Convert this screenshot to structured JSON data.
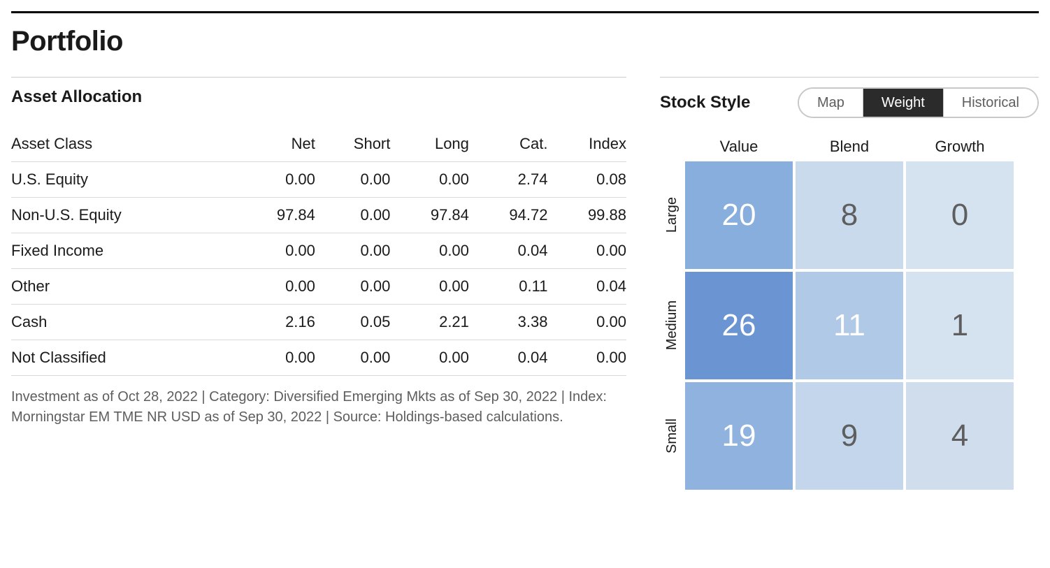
{
  "page": {
    "title": "Portfolio"
  },
  "colors": {
    "text": "#1a1a1a",
    "muted": "#5e5e5e",
    "rule": "#000000",
    "row_border": "#d9d9d9",
    "seg_border": "#c8c8c8",
    "seg_active_bg": "#2b2b2b",
    "seg_active_fg": "#ffffff",
    "bg": "#ffffff"
  },
  "asset_allocation": {
    "title": "Asset Allocation",
    "columns": [
      "Asset Class",
      "Net",
      "Short",
      "Long",
      "Cat.",
      "Index"
    ],
    "rows": [
      [
        "U.S. Equity",
        "0.00",
        "0.00",
        "0.00",
        "2.74",
        "0.08"
      ],
      [
        "Non-U.S. Equity",
        "97.84",
        "0.00",
        "97.84",
        "94.72",
        "99.88"
      ],
      [
        "Fixed Income",
        "0.00",
        "0.00",
        "0.00",
        "0.04",
        "0.00"
      ],
      [
        "Other",
        "0.00",
        "0.00",
        "0.00",
        "0.11",
        "0.04"
      ],
      [
        "Cash",
        "2.16",
        "0.05",
        "2.21",
        "3.38",
        "0.00"
      ],
      [
        "Not Classified",
        "0.00",
        "0.00",
        "0.00",
        "0.04",
        "0.00"
      ]
    ],
    "footnote": "Investment as of Oct 28, 2022 | Category: Diversified Emerging Mkts as of Sep 30, 2022 | Index: Morningstar EM TME NR USD as of Sep 30, 2022 | Source: Holdings-based calculations."
  },
  "stock_style": {
    "title": "Stock Style",
    "tabs": [
      "Map",
      "Weight",
      "Historical"
    ],
    "active_tab_index": 1,
    "col_labels": [
      "Value",
      "Blend",
      "Growth"
    ],
    "row_labels": [
      "Large",
      "Medium",
      "Small"
    ],
    "cells": [
      {
        "value": 20,
        "bg": "#87aedd",
        "fg": "#ffffff"
      },
      {
        "value": 8,
        "bg": "#c9daed",
        "fg": "#5e5e5e"
      },
      {
        "value": 0,
        "bg": "#d5e2f0",
        "fg": "#5e5e5e"
      },
      {
        "value": 26,
        "bg": "#6a95d2",
        "fg": "#ffffff"
      },
      {
        "value": 11,
        "bg": "#b0c9e6",
        "fg": "#ffffff"
      },
      {
        "value": 1,
        "bg": "#d5e2f0",
        "fg": "#5e5e5e"
      },
      {
        "value": 19,
        "bg": "#8fb3de",
        "fg": "#ffffff"
      },
      {
        "value": 9,
        "bg": "#c3d6ec",
        "fg": "#5e5e5e"
      },
      {
        "value": 4,
        "bg": "#cfdded",
        "fg": "#5e5e5e"
      }
    ],
    "cell_font_size": 44,
    "label_font_size": 22
  }
}
